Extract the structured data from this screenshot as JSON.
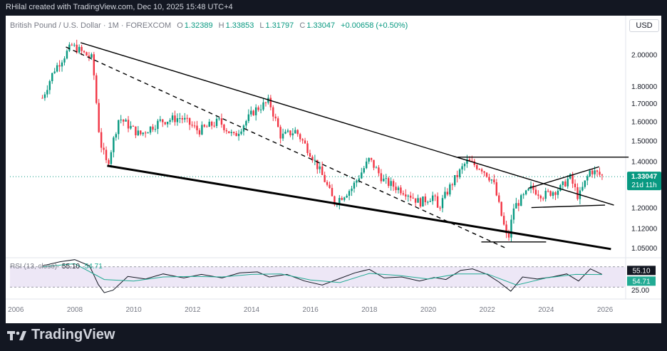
{
  "header": {
    "attribution": "RHilal created with TradingView.com, Dec 10, 2025 15:48 UTC+4"
  },
  "legend": {
    "symbol": "British Pound / U.S. Dollar · 1M · FOREXCOM",
    "o_label": "O",
    "o": "1.32389",
    "h_label": "H",
    "h": "1.33853",
    "l_label": "L",
    "l": "1.31797",
    "c_label": "C",
    "c": "1.33047",
    "change": "+0.00658 (+0.50%)"
  },
  "currency_button": "USD",
  "price_label": {
    "value": "1.33047",
    "countdown": "21d 11h"
  },
  "rsi": {
    "label": "RSI (13, close)",
    "value": "55.10",
    "ma": "54.71"
  },
  "brand": {
    "name": "TradingView"
  },
  "colors": {
    "up": "#089981",
    "down": "#f23645",
    "rsi_line": "#131722",
    "rsi_ma": "#22ab94",
    "rsi_band": "#ede7f6",
    "tag": "#089981",
    "bg": "#131722"
  },
  "chart_data": [
    {
      "type": "candlestick",
      "title": "British Pound / U.S. Dollar · 1M · FOREXCOM",
      "scale": "log",
      "ylim": [
        1.02,
        2.15
      ],
      "xlim": [
        2005.8,
        2026.7
      ],
      "y_ticks": [
        {
          "value": 2.0,
          "label": "2.00000"
        },
        {
          "value": 1.8,
          "label": "1.80000"
        },
        {
          "value": 1.7,
          "label": "1.70000"
        },
        {
          "value": 1.6,
          "label": "1.60000"
        },
        {
          "value": 1.5,
          "label": "1.50000"
        },
        {
          "value": 1.4,
          "label": "1.40000"
        },
        {
          "value": 1.2,
          "label": "1.20000"
        },
        {
          "value": 1.12,
          "label": "1.12000"
        },
        {
          "value": 1.05,
          "label": "1.05000"
        }
      ],
      "x_ticks": [
        "2006",
        "2008",
        "2010",
        "2012",
        "2014",
        "2016",
        "2018",
        "2020",
        "2022",
        "2024",
        "2026"
      ],
      "path_points": [
        [
          2006.9,
          1.73
        ],
        [
          2007.3,
          1.9
        ],
        [
          2007.9,
          2.06
        ],
        [
          2008.6,
          1.97
        ],
        [
          2008.85,
          1.5
        ],
        [
          2009.1,
          1.38
        ],
        [
          2009.5,
          1.62
        ],
        [
          2010.2,
          1.53
        ],
        [
          2010.9,
          1.6
        ],
        [
          2011.6,
          1.62
        ],
        [
          2012.2,
          1.55
        ],
        [
          2012.9,
          1.6
        ],
        [
          2013.4,
          1.52
        ],
        [
          2014.1,
          1.66
        ],
        [
          2014.6,
          1.71
        ],
        [
          2015.0,
          1.52
        ],
        [
          2015.5,
          1.55
        ],
        [
          2016.0,
          1.44
        ],
        [
          2016.5,
          1.31
        ],
        [
          2016.8,
          1.22
        ],
        [
          2017.4,
          1.28
        ],
        [
          2018.0,
          1.41
        ],
        [
          2018.5,
          1.31
        ],
        [
          2019.3,
          1.26
        ],
        [
          2019.7,
          1.22
        ],
        [
          2020.2,
          1.25
        ],
        [
          2020.3,
          1.19
        ],
        [
          2020.8,
          1.3
        ],
        [
          2021.3,
          1.4
        ],
        [
          2021.8,
          1.37
        ],
        [
          2022.2,
          1.31
        ],
        [
          2022.7,
          1.07
        ],
        [
          2022.9,
          1.2
        ],
        [
          2023.5,
          1.28
        ],
        [
          2023.9,
          1.25
        ],
        [
          2024.5,
          1.28
        ],
        [
          2024.8,
          1.33
        ],
        [
          2025.1,
          1.24
        ],
        [
          2025.5,
          1.36
        ],
        [
          2025.8,
          1.34
        ],
        [
          2025.95,
          1.33
        ]
      ],
      "trendlines": [
        {
          "style": "solid",
          "from": [
            2008.2,
            2.08
          ],
          "to": [
            2026.3,
            1.21
          ]
        },
        {
          "style": "dashed",
          "from": [
            2007.7,
            2.05
          ],
          "to": [
            2022.7,
            1.045
          ]
        },
        {
          "style": "solid-thick",
          "from": [
            2009.1,
            1.38
          ],
          "to": [
            2026.2,
            1.045
          ]
        },
        {
          "style": "horizontal",
          "from": [
            2021.0,
            1.42
          ],
          "to": [
            2026.8,
            1.42
          ]
        },
        {
          "style": "horizontal",
          "from": [
            2021.8,
            1.07
          ],
          "to": [
            2024.0,
            1.07
          ]
        },
        {
          "style": "solid",
          "from": [
            2023.4,
            1.28
          ],
          "to": [
            2025.8,
            1.375
          ]
        },
        {
          "style": "solid",
          "from": [
            2023.5,
            1.2
          ],
          "to": [
            2026.0,
            1.21
          ]
        }
      ],
      "last_price": 1.33047
    },
    {
      "type": "line",
      "title": "RSI (13, close)",
      "ylim": [
        15,
        85
      ],
      "y_ticks": [
        {
          "value": 25,
          "label": "25.00"
        }
      ],
      "bands": [
        30,
        70
      ],
      "series": [
        {
          "name": "RSI",
          "x": [
            2006.9,
            2007.5,
            2008.0,
            2008.5,
            2008.8,
            2009.0,
            2009.3,
            2009.8,
            2010.4,
            2011.0,
            2011.7,
            2012.3,
            2013.0,
            2013.6,
            2014.2,
            2014.6,
            2015.2,
            2015.8,
            2016.4,
            2016.9,
            2017.5,
            2018.0,
            2018.5,
            2019.1,
            2019.7,
            2020.2,
            2020.6,
            2021.1,
            2021.5,
            2022.0,
            2022.4,
            2022.8,
            2023.2,
            2023.7,
            2024.2,
            2024.7,
            2025.1,
            2025.5,
            2025.9
          ],
          "y": [
            72,
            80,
            84,
            72,
            35,
            19,
            24,
            51,
            46,
            56,
            48,
            55,
            48,
            58,
            60,
            50,
            55,
            42,
            34,
            45,
            58,
            65,
            48,
            50,
            42,
            49,
            45,
            63,
            66,
            55,
            40,
            22,
            50,
            46,
            50,
            56,
            42,
            66,
            55.1
          ]
        },
        {
          "name": "MA",
          "x": [
            2006.9,
            2008.0,
            2009.0,
            2010.0,
            2011.0,
            2012.0,
            2013.0,
            2014.0,
            2015.0,
            2016.0,
            2017.0,
            2018.0,
            2019.0,
            2020.0,
            2021.0,
            2022.0,
            2023.0,
            2024.0,
            2025.0,
            2025.9
          ],
          "y": [
            70,
            76,
            45,
            42,
            50,
            51,
            50,
            55,
            56,
            44,
            39,
            57,
            53,
            46,
            56,
            56,
            34,
            48,
            55,
            54.71
          ]
        }
      ]
    }
  ]
}
